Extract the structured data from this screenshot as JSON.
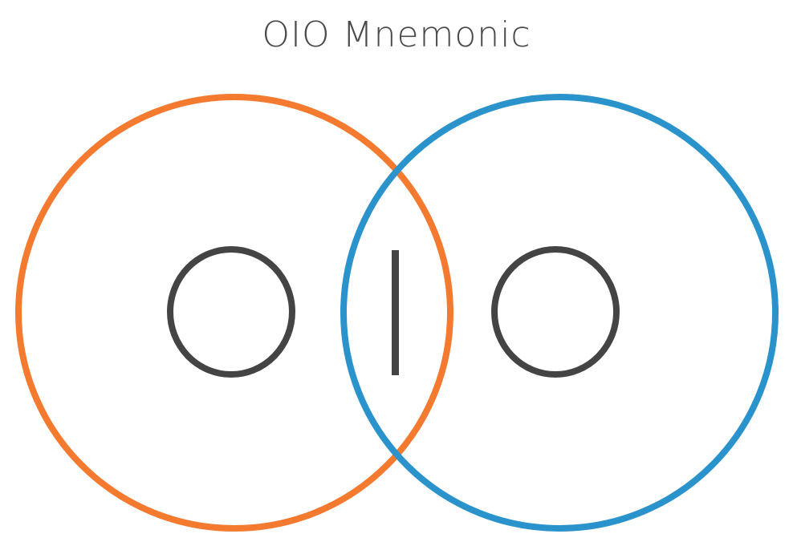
{
  "title": "OIO Mnemonic",
  "diagram": {
    "left_circle_color": "#f47a2f",
    "right_circle_color": "#2a93cc",
    "glyph_color": "#444444",
    "letters": [
      "O",
      "I",
      "O"
    ]
  }
}
